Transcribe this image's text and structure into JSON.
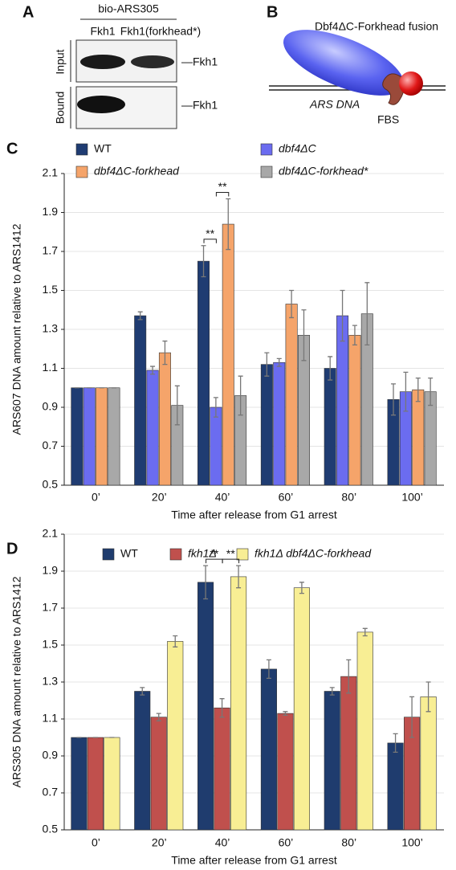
{
  "panel_a": {
    "label": "A",
    "header": "bio-ARS305",
    "lanes": [
      "Fkh1",
      "Fkh1(forkhead*)"
    ],
    "rows": [
      "Input",
      "Bound"
    ],
    "band_label": "—Fkh1"
  },
  "panel_b": {
    "label": "B",
    "title": "Dbf4ΔC-Forkhead fusion",
    "dna_label": "ARS DNA",
    "site_label": "FBS"
  },
  "chart_data": [
    {
      "type": "bar",
      "panel_label": "C",
      "categories": [
        "0’",
        "20’",
        "40’",
        "60’",
        "80’",
        "100’"
      ],
      "xlabel": "Time after release from G1 arrest",
      "ylabel": "ARS607 DNA amount relative to ARS1412",
      "ylim": [
        0.5,
        2.1
      ],
      "yticks": [
        0.5,
        0.7,
        0.9,
        1.1,
        1.3,
        1.5,
        1.7,
        1.9,
        2.1
      ],
      "grid": true,
      "legend": "top",
      "series": [
        {
          "name": "WT",
          "color": "#1f3c72",
          "values": [
            1.0,
            1.37,
            1.65,
            1.12,
            1.1,
            0.94
          ],
          "errors": [
            0,
            0.02,
            0.08,
            0.06,
            0.06,
            0.08
          ]
        },
        {
          "name": "dbf4ΔC",
          "color": "#6b6cf0",
          "values": [
            1.0,
            1.09,
            0.9,
            1.13,
            1.37,
            0.98
          ],
          "errors": [
            0,
            0.02,
            0.05,
            0.02,
            0.13,
            0.1
          ]
        },
        {
          "name": "dbf4ΔC-forkhead",
          "color": "#f5a46a",
          "values": [
            1.0,
            1.18,
            1.84,
            1.43,
            1.27,
            0.99
          ],
          "errors": [
            0,
            0.06,
            0.13,
            0.07,
            0.05,
            0.06
          ]
        },
        {
          "name": "dbf4ΔC-forkhead*",
          "color": "#a8a8a8",
          "values": [
            1.0,
            0.91,
            0.96,
            1.27,
            1.38,
            0.98
          ],
          "errors": [
            0,
            0.1,
            0.1,
            0.13,
            0.16,
            0.07
          ]
        }
      ],
      "annotations": [
        "**",
        "**"
      ]
    },
    {
      "type": "bar",
      "panel_label": "D",
      "categories": [
        "0’",
        "20’",
        "40’",
        "60’",
        "80’",
        "100’"
      ],
      "xlabel": "Time after release from G1 arrest",
      "ylabel": "ARS305 DNA amount relative to ARS1412",
      "ylim": [
        0.5,
        2.1
      ],
      "yticks": [
        0.5,
        0.7,
        0.9,
        1.1,
        1.3,
        1.5,
        1.7,
        1.9,
        2.1
      ],
      "grid": true,
      "legend": "top",
      "series": [
        {
          "name": "WT",
          "color": "#1f3c6e",
          "values": [
            1.0,
            1.25,
            1.84,
            1.37,
            1.25,
            0.97
          ],
          "errors": [
            0,
            0.02,
            0.09,
            0.05,
            0.02,
            0.05
          ]
        },
        {
          "name": "fkh1Δ",
          "color": "#c0504d",
          "values": [
            1.0,
            1.11,
            1.16,
            1.13,
            1.33,
            1.11
          ],
          "errors": [
            0,
            0.02,
            0.05,
            0.01,
            0.09,
            0.11
          ]
        },
        {
          "name": "fkh1Δ dbf4ΔC-forkhead",
          "color": "#f8ee94",
          "values": [
            1.0,
            1.52,
            1.87,
            1.81,
            1.57,
            1.22
          ],
          "errors": [
            0,
            0.03,
            0.06,
            0.03,
            0.02,
            0.08
          ]
        }
      ],
      "annotations": [
        "**",
        "**"
      ]
    }
  ]
}
